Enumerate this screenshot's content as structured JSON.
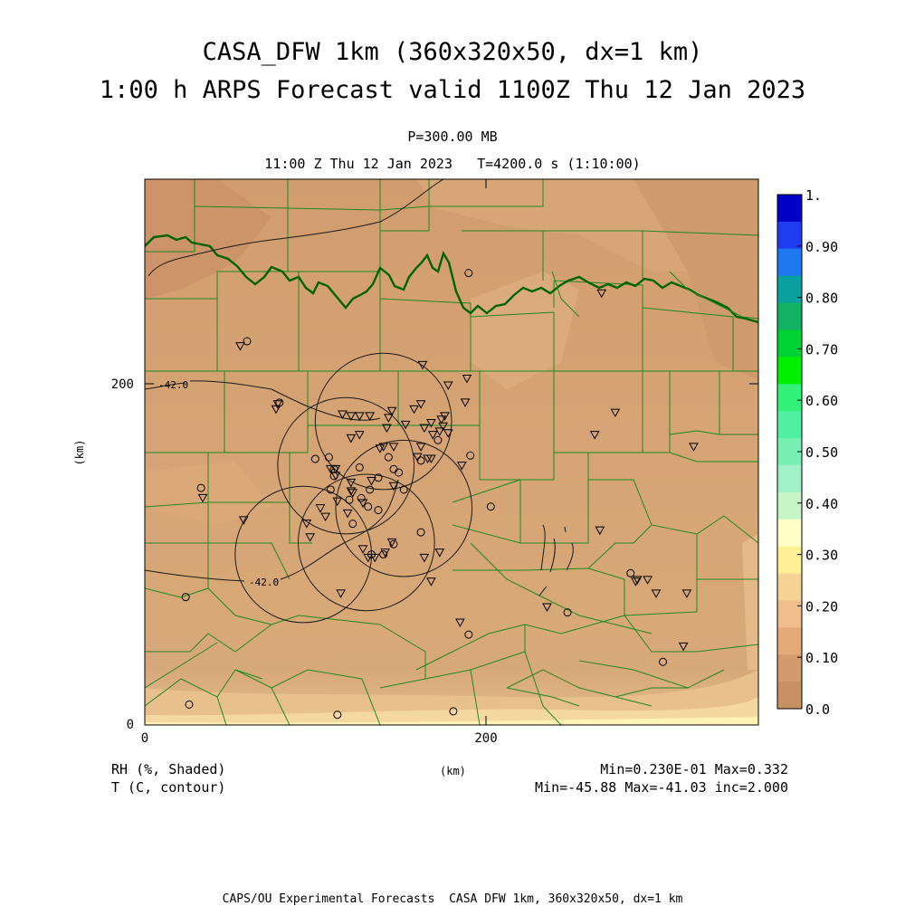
{
  "header": {
    "title_line1": "CASA_DFW 1km (360x320x50, dx=1 km)",
    "title_line2": "1:00 h ARPS Forecast valid 1100Z Thu 12 Jan 2023",
    "pressure_level": "P=300.00 MB",
    "subtitle": "11:00 Z Thu 12 Jan 2023   T=4200.0 s (1:10:00)"
  },
  "axes": {
    "x_ticks": [
      "0",
      "200"
    ],
    "y_ticks": [
      "0",
      "200"
    ],
    "x_label": "(km)",
    "y_label": "(km)",
    "x_range": [
      0,
      360
    ],
    "y_range": [
      0,
      320
    ]
  },
  "colorbar": {
    "labels": [
      "1.",
      "0.90",
      "0.80",
      "0.70",
      "0.60",
      "0.50",
      "0.40",
      "0.30",
      "0.20",
      "0.10",
      "0.0"
    ],
    "colors": [
      "#0000c8",
      "#1f3cf0",
      "#1e78f0",
      "#0aa0a0",
      "#12b464",
      "#00d234",
      "#00f000",
      "#32f078",
      "#50f0a0",
      "#78f0b4",
      "#a0f0c8",
      "#c8f5c8",
      "#ffffc8",
      "#fff096",
      "#f5d296",
      "#f0be8c",
      "#e6aa78",
      "#d29b6e",
      "#c89164"
    ]
  },
  "footer": {
    "rh_label": "RH (%, Shaded)",
    "t_label": "T (C, contour)",
    "x_unit": "(km)",
    "rh_stats": "Min=0.230E-01 Max=0.332",
    "t_stats": "Min=-45.88 Max=-41.03 inc=2.000",
    "credit": "CAPS/OU Experimental Forecasts  CASA DFW 1km, 360x320x50, dx=1 km"
  },
  "map": {
    "contour_labels": [
      "-42.0",
      "-42.0"
    ],
    "radar_rings_km": [
      {
        "x": 140,
        "y": 178,
        "r": 40
      },
      {
        "x": 118,
        "y": 152,
        "r": 40
      },
      {
        "x": 152,
        "y": 127,
        "r": 40
      },
      {
        "x": 93,
        "y": 100,
        "r": 40
      },
      {
        "x": 130,
        "y": 107,
        "r": 40
      }
    ],
    "stations_triangle": [
      [
        56,
        222
      ],
      [
        77,
        185
      ],
      [
        78,
        188
      ],
      [
        116,
        182
      ],
      [
        121,
        181
      ],
      [
        126,
        181
      ],
      [
        132,
        181
      ],
      [
        143,
        180
      ],
      [
        145,
        184
      ],
      [
        153,
        176
      ],
      [
        158,
        185
      ],
      [
        162,
        188
      ],
      [
        168,
        177
      ],
      [
        164,
        174
      ],
      [
        169,
        170
      ],
      [
        162,
        163
      ],
      [
        160,
        157
      ],
      [
        126,
        170
      ],
      [
        121,
        168
      ],
      [
        138,
        162
      ],
      [
        140,
        163
      ],
      [
        146,
        163
      ],
      [
        142,
        174
      ],
      [
        166,
        156
      ],
      [
        168,
        156
      ],
      [
        176,
        181
      ],
      [
        174,
        179
      ],
      [
        175,
        175
      ],
      [
        173,
        172
      ],
      [
        178,
        171
      ],
      [
        188,
        189
      ],
      [
        178,
        199
      ],
      [
        189,
        203
      ],
      [
        163,
        211
      ],
      [
        109,
        150
      ],
      [
        112,
        150
      ],
      [
        112,
        146
      ],
      [
        121,
        142
      ],
      [
        121,
        137
      ],
      [
        122,
        136
      ],
      [
        128,
        130
      ],
      [
        133,
        143
      ],
      [
        146,
        140
      ],
      [
        113,
        131
      ],
      [
        119,
        124
      ],
      [
        103,
        127
      ],
      [
        106,
        122
      ],
      [
        95,
        118
      ],
      [
        141,
        101
      ],
      [
        135,
        98
      ],
      [
        128,
        103
      ],
      [
        131,
        98
      ],
      [
        145,
        107
      ],
      [
        164,
        98
      ],
      [
        173,
        101
      ],
      [
        168,
        84
      ],
      [
        58,
        120
      ],
      [
        97,
        110
      ],
      [
        115,
        77
      ],
      [
        34,
        133
      ],
      [
        186,
        152
      ],
      [
        268,
        253
      ],
      [
        276,
        183
      ],
      [
        264,
        170
      ],
      [
        322,
        163
      ],
      [
        267,
        114
      ],
      [
        289,
        85
      ],
      [
        288,
        84
      ],
      [
        295,
        85
      ],
      [
        300,
        77
      ],
      [
        318,
        77
      ],
      [
        236,
        69
      ],
      [
        185,
        60
      ],
      [
        316,
        46
      ]
    ],
    "stations_circle": [
      [
        60,
        225
      ],
      [
        79,
        189
      ],
      [
        108,
        157
      ],
      [
        100,
        156
      ],
      [
        111,
        150
      ],
      [
        111,
        146
      ],
      [
        109,
        138
      ],
      [
        120,
        132
      ],
      [
        127,
        133
      ],
      [
        149,
        148
      ],
      [
        137,
        145
      ],
      [
        146,
        150
      ],
      [
        162,
        155
      ],
      [
        172,
        167
      ],
      [
        191,
        158
      ],
      [
        122,
        118
      ],
      [
        146,
        106
      ],
      [
        140,
        100
      ],
      [
        133,
        100
      ],
      [
        162,
        113
      ],
      [
        137,
        126
      ],
      [
        131,
        128
      ],
      [
        152,
        138
      ],
      [
        126,
        151
      ],
      [
        132,
        138
      ],
      [
        143,
        157
      ],
      [
        203,
        128
      ],
      [
        190,
        53
      ],
      [
        24,
        75
      ],
      [
        33,
        139
      ],
      [
        26,
        12
      ],
      [
        113,
        6
      ],
      [
        181,
        8
      ],
      [
        285,
        89
      ],
      [
        248,
        66
      ],
      [
        304,
        37
      ],
      [
        190,
        265
      ]
    ]
  }
}
